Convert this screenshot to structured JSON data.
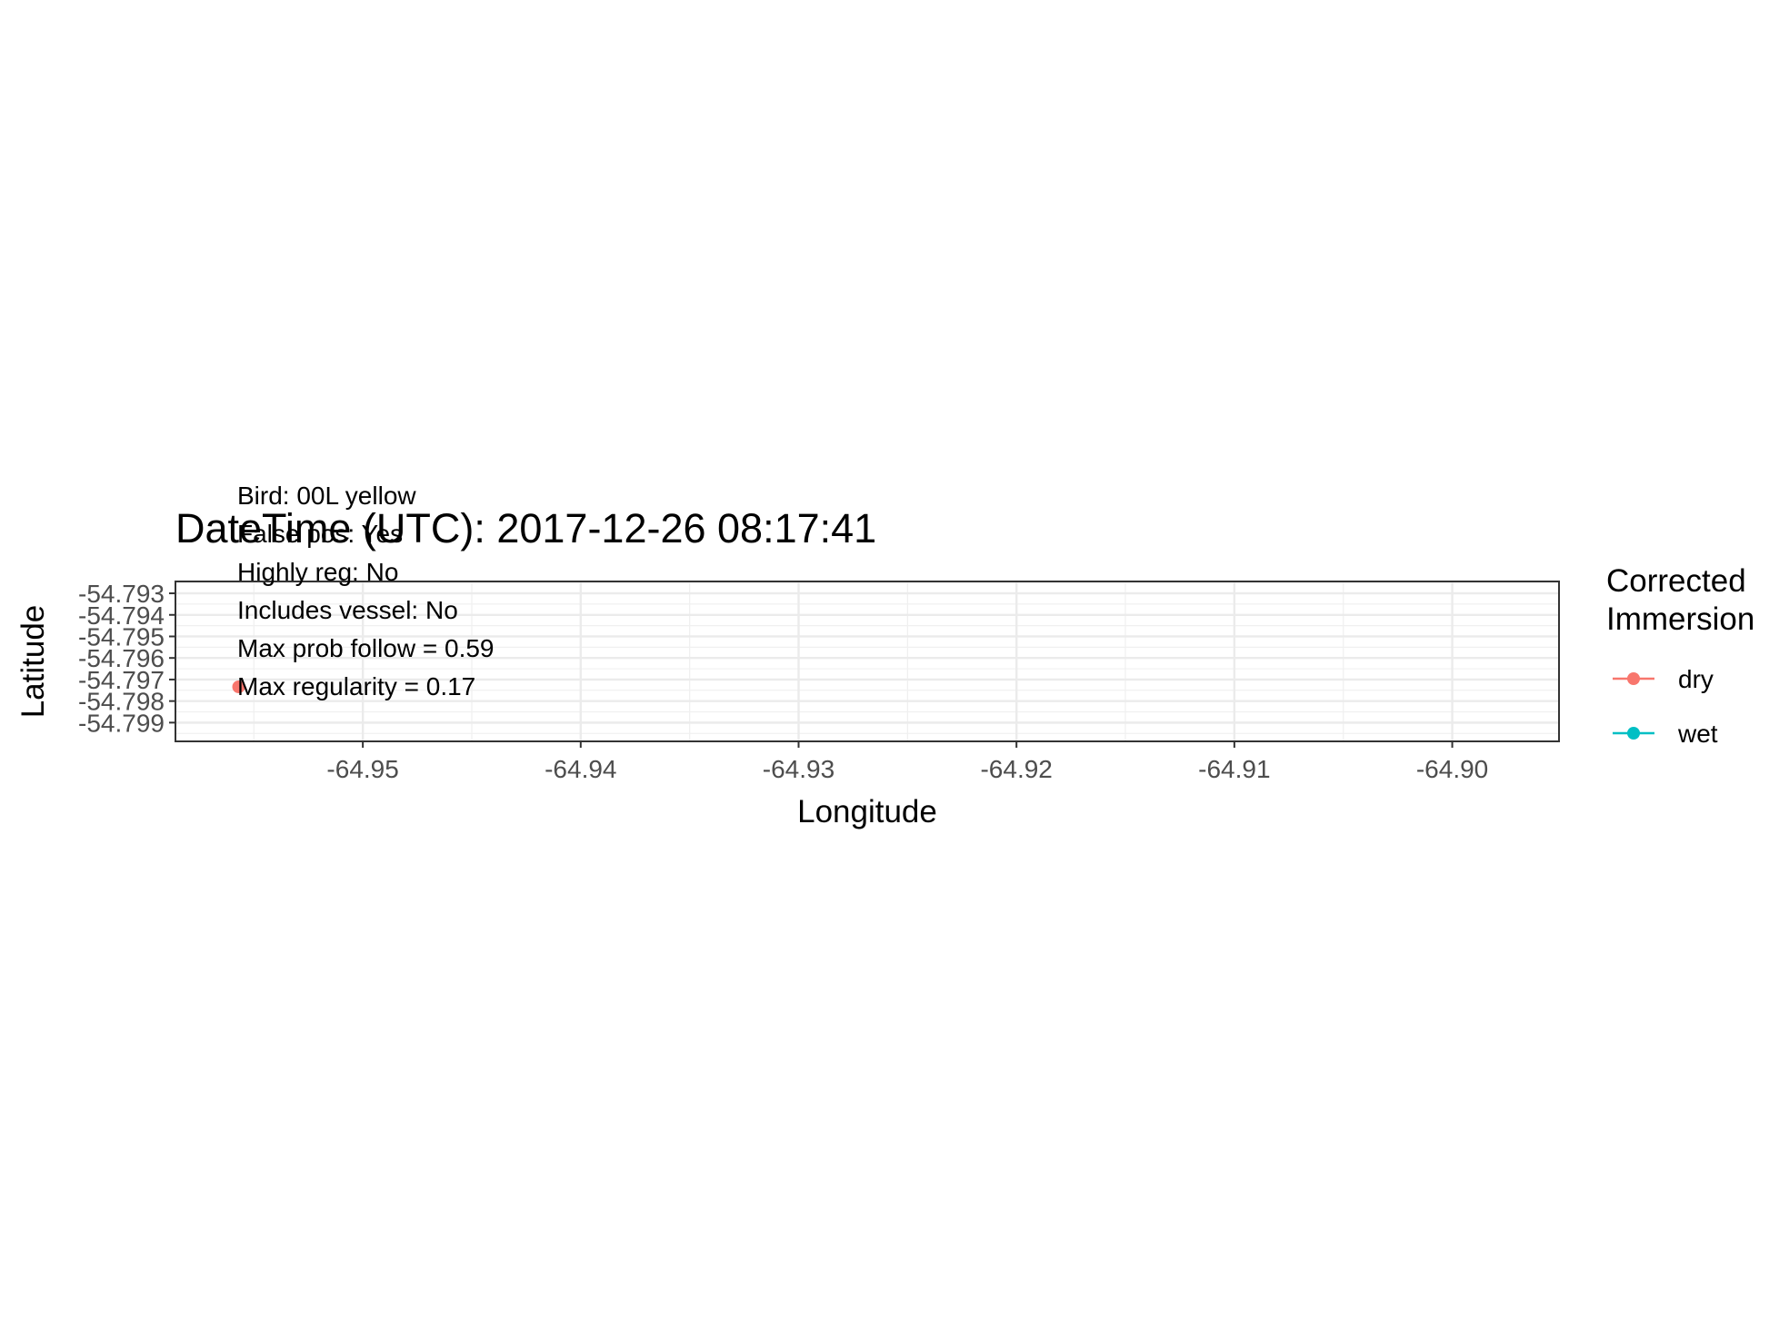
{
  "chart_data": {
    "type": "scatter",
    "title": "DateTime (UTC): 2017-12-26 08:17:41",
    "xlabel": "Longitude",
    "ylabel": "Latitude",
    "xlim": [
      -64.9586,
      -64.8951
    ],
    "ylim": [
      -54.79987,
      -54.79245
    ],
    "x_ticks": [
      -64.95,
      -64.94,
      -64.93,
      -64.92,
      -64.91,
      -64.9
    ],
    "x_tick_labels": [
      "-64.95",
      "-64.94",
      "-64.93",
      "-64.92",
      "-64.91",
      "-64.90"
    ],
    "y_ticks": [
      -54.793,
      -54.794,
      -54.795,
      -54.796,
      -54.797,
      -54.798,
      -54.799
    ],
    "y_tick_labels": [
      "-54.793",
      "-54.794",
      "-54.795",
      "-54.796",
      "-54.797",
      "-54.798",
      "-54.799"
    ],
    "grid": true,
    "legend": {
      "title": "Corrected\nImmersion",
      "title_lines": [
        "Corrected",
        "Immersion"
      ],
      "placement": "right",
      "entries": [
        {
          "label": "dry",
          "color": "#F8766D"
        },
        {
          "label": "wet",
          "color": "#00BFC4"
        }
      ]
    },
    "series": [
      {
        "name": "dry",
        "color": "#F8766D",
        "points": [
          {
            "x": -64.9557,
            "y": -54.79734
          }
        ]
      },
      {
        "name": "wet",
        "color": "#00BFC4",
        "points": []
      }
    ],
    "annotations": [
      "Bird: 00L yellow",
      "False pos: Yes",
      "Highly reg: No",
      "Includes vessel: No",
      "Max prob follow = 0.59",
      "Max regularity = 0.17"
    ]
  }
}
